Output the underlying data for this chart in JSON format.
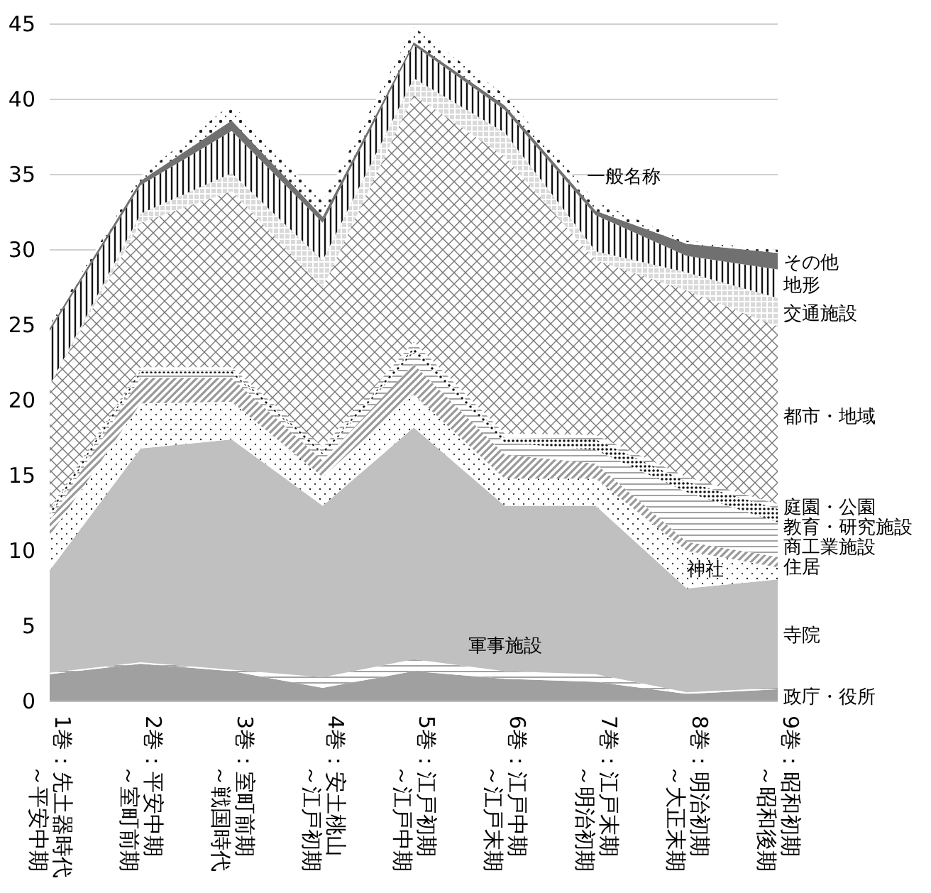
{
  "chart_data": {
    "type": "area",
    "stacked": true,
    "grid": "y",
    "categories": [
      "1巻：先土器時代～平安中期",
      "2巻：平安中期～室町前期",
      "3巻：室町前期～戦国時代",
      "4巻：安土桃山～江戸初期",
      "5巻：江戸初期～江戸中期",
      "6巻：江戸中期～江戸末期",
      "7巻：江戸末期～明治初期",
      "8巻：明治初期～大正末期",
      "9巻：昭和初期～昭和後期"
    ],
    "ylim": [
      0,
      45
    ],
    "yticks": [
      0,
      5,
      10,
      15,
      20,
      25,
      30,
      35,
      40,
      45
    ],
    "series": [
      {
        "name": "政庁・役所",
        "color": "#a0a0a0",
        "values": [
          1.8,
          2.5,
          2.0,
          0.9,
          2.0,
          1.5,
          1.3,
          0.5,
          0.8
        ]
      },
      {
        "name": "軍事施設",
        "color": "#ffffff",
        "values": [
          0.1,
          0.1,
          0.1,
          0.7,
          0.8,
          0.5,
          0.5,
          0.1,
          0.1
        ]
      },
      {
        "name": "寺院",
        "color": "#c0c0c0",
        "values": [
          6.8,
          14.2,
          15.3,
          11.4,
          15.4,
          11.0,
          11.2,
          6.9,
          7.2
        ]
      },
      {
        "name": "神社",
        "color": "#ffffff",
        "values": [
          2.3,
          3.0,
          2.5,
          1.9,
          2.2,
          1.8,
          1.8,
          2.5,
          0.8
        ]
      },
      {
        "name": "住居",
        "color": "#ffffff",
        "values": [
          1.0,
          1.7,
          1.6,
          1.1,
          2.0,
          1.6,
          1.0,
          0.6,
          0.7
        ]
      },
      {
        "name": "商工業施設",
        "color": "#ffffff",
        "values": [
          0.3,
          0.3,
          0.3,
          0.4,
          0.8,
          0.8,
          0.9,
          3.3,
          2.3
        ]
      },
      {
        "name": "教育・研究施設",
        "color": "#ffffff",
        "values": [
          0.3,
          0.2,
          0.2,
          0.2,
          0.3,
          0.3,
          0.7,
          0.7,
          0.9
        ]
      },
      {
        "name": "庭園・公園",
        "color": "#ffffff",
        "values": [
          0.2,
          0.2,
          0.2,
          0.3,
          0.4,
          0.3,
          0.3,
          0.3,
          0.3
        ]
      },
      {
        "name": "都市・地域",
        "color": "#ffffff",
        "values": [
          8.2,
          9.6,
          11.7,
          10.6,
          16.4,
          18.4,
          11.6,
          12.4,
          11.8
        ]
      },
      {
        "name": "交通施設",
        "color": "#d9d9d9",
        "values": [
          0,
          0.6,
          1.2,
          1.8,
          1.1,
          1.6,
          0.6,
          1.2,
          1.9
        ]
      },
      {
        "name": "地形",
        "color": "#ffffff",
        "values": [
          3.6,
          1.9,
          2.8,
          2.5,
          2.2,
          1.5,
          2.4,
          1.1,
          1.9
        ]
      },
      {
        "name": "その他",
        "color": "#707070",
        "values": [
          0.2,
          0.3,
          0.7,
          0.4,
          0.2,
          0.3,
          0.3,
          0.8,
          1.1
        ]
      },
      {
        "name": "一般名称",
        "color": "#ffffff",
        "values": [
          0.2,
          0.3,
          1.1,
          1.0,
          1.0,
          0.7,
          0.6,
          0.2,
          0.2
        ]
      }
    ]
  }
}
